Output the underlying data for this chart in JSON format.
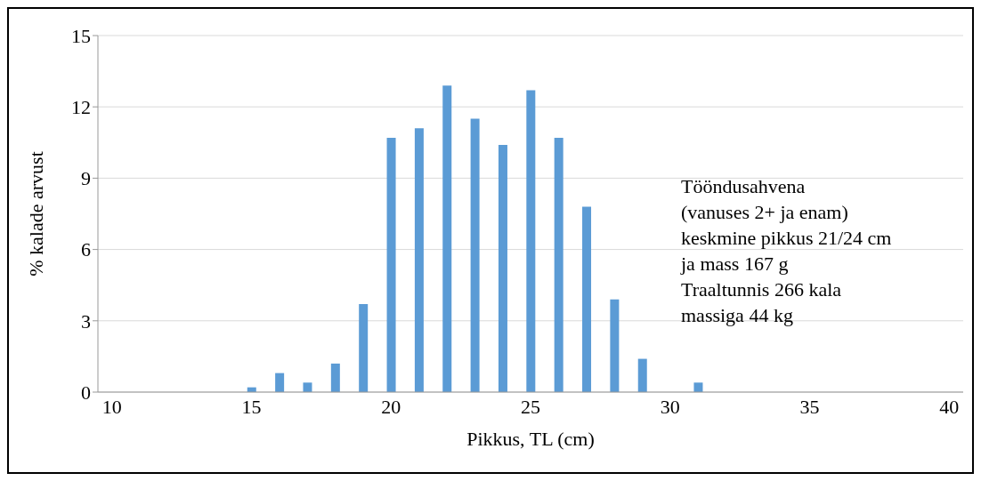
{
  "chart_data": {
    "type": "bar",
    "xlabel": "Pikkus, TL (cm)",
    "ylabel": "% kalade arvust",
    "categories": [
      "10",
      null,
      null,
      null,
      null,
      "15",
      null,
      null,
      null,
      null,
      "20",
      null,
      null,
      null,
      null,
      "25",
      null,
      null,
      null,
      null,
      "30",
      null,
      null,
      null,
      null,
      "35",
      null,
      null,
      null,
      null,
      "40"
    ],
    "values": [
      0,
      0,
      0,
      0,
      0,
      0.2,
      0.8,
      0.4,
      1.2,
      3.7,
      10.7,
      11.1,
      12.9,
      11.5,
      10.4,
      12.7,
      10.7,
      7.8,
      3.9,
      1.4,
      0,
      0.4,
      0,
      0,
      0,
      0,
      0,
      0,
      0,
      0,
      0
    ],
    "color": "#5b9bd5",
    "ylim": [
      0,
      15
    ],
    "yticks": [
      0,
      3,
      6,
      9,
      12,
      15
    ],
    "grid": "y",
    "annotations": [
      "Tööndusahvena",
      "(vanuses 2+ ja enam)",
      "keskmine pikkus 21/24 cm",
      "ja mass 167 g",
      "Traaltunnis 266 kala",
      "massiga 44 kg"
    ]
  }
}
